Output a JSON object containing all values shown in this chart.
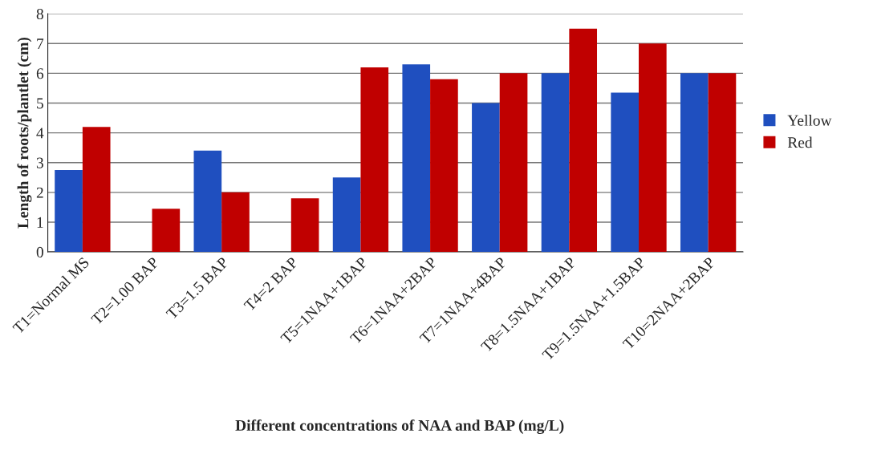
{
  "chart_data": {
    "type": "bar",
    "xlabel": "Different concentrations of NAA and BAP (mg/L)",
    "ylabel": "Length of roots/plantlet (cm)",
    "categories": [
      "T1=Normal MS",
      "T2=1.00 BAP",
      "T3=1.5 BAP",
      "T4=2 BAP",
      "T5=1NAA+1BAP",
      "T6=1NAA+2BAP",
      "T7=1NAA+4BAP",
      "T8=1.5NAA+1BAP",
      "T9=1.5NAA+1.5BAP",
      "T10=2NAA+2BAP"
    ],
    "series": [
      {
        "name": "Yellow",
        "color": "#1f4fbf",
        "values": [
          2.75,
          null,
          3.4,
          null,
          2.5,
          6.3,
          5.0,
          6.0,
          5.35,
          6.0
        ]
      },
      {
        "name": "Red",
        "color": "#c00000",
        "values": [
          4.2,
          1.45,
          2.0,
          1.8,
          6.2,
          5.8,
          6.0,
          7.5,
          7.0,
          6.0
        ]
      }
    ],
    "ylim": [
      0,
      8
    ],
    "yticks": [
      0,
      1,
      2,
      3,
      4,
      5,
      6,
      7,
      8
    ],
    "grid": "y",
    "legend": "right"
  }
}
